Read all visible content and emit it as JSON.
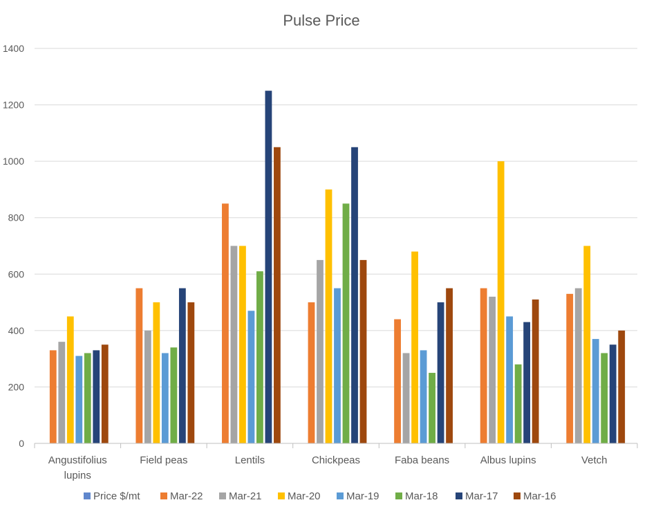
{
  "chart_data": {
    "type": "bar",
    "title": "Pulse Price",
    "xlabel": "",
    "ylabel": "",
    "ylim": [
      0,
      1400
    ],
    "yticks": [
      0,
      200,
      400,
      600,
      800,
      1000,
      1200,
      1400
    ],
    "grid": true,
    "legend_position": "bottom",
    "categories": [
      [
        "Angustifolius",
        "lupins"
      ],
      [
        "Field peas"
      ],
      [
        "Lentils"
      ],
      [
        "Chickpeas"
      ],
      [
        "Faba beans"
      ],
      [
        "Albus lupins"
      ],
      [
        "Vetch"
      ]
    ],
    "legend_extra": {
      "name": "Price $/mt",
      "color": "#4472C4"
    },
    "series": [
      {
        "name": "Mar-22",
        "color": "#ED7D31",
        "values": [
          330,
          550,
          850,
          500,
          440,
          550,
          530
        ]
      },
      {
        "name": "Mar-21",
        "color": "#A5A5A5",
        "values": [
          360,
          400,
          700,
          650,
          320,
          520,
          550
        ]
      },
      {
        "name": "Mar-20",
        "color": "#FFC000",
        "values": [
          450,
          500,
          700,
          900,
          680,
          1000,
          700
        ]
      },
      {
        "name": "Mar-19",
        "color": "#5B9BD5",
        "values": [
          310,
          320,
          470,
          550,
          330,
          450,
          370
        ]
      },
      {
        "name": "Mar-18",
        "color": "#70AD47",
        "values": [
          320,
          340,
          610,
          850,
          250,
          280,
          320
        ]
      },
      {
        "name": "Mar-17",
        "color": "#264478",
        "values": [
          330,
          550,
          1250,
          1050,
          500,
          430,
          350
        ]
      },
      {
        "name": "Mar-16",
        "color": "#9E480E",
        "values": [
          350,
          500,
          1050,
          650,
          550,
          510,
          400
        ]
      }
    ]
  }
}
